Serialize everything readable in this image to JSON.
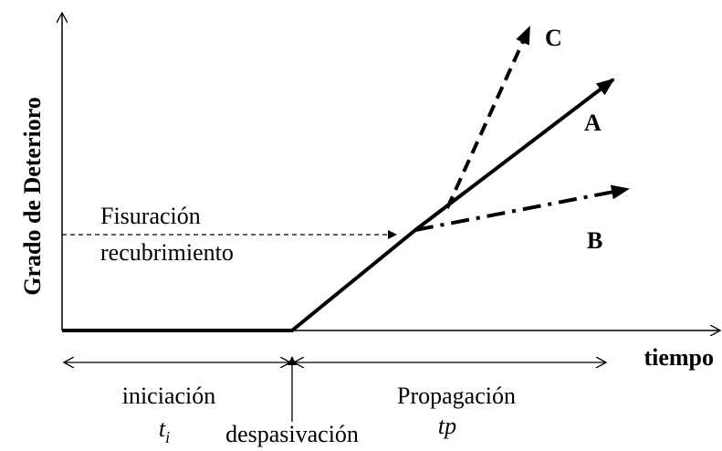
{
  "axes": {
    "y_label": "Grado de Deterioro",
    "x_label": "tiempo"
  },
  "threshold": {
    "line1": "Fisuración",
    "line2": "recubrimiento"
  },
  "curves": {
    "a": "A",
    "b": "B",
    "c": "C"
  },
  "phases": {
    "initiation": {
      "label": "iniciación",
      "symbol": "t",
      "subscript": "i"
    },
    "transition": "despasivación",
    "propagation": {
      "label": "Propagación",
      "symbol": "tp"
    }
  }
}
